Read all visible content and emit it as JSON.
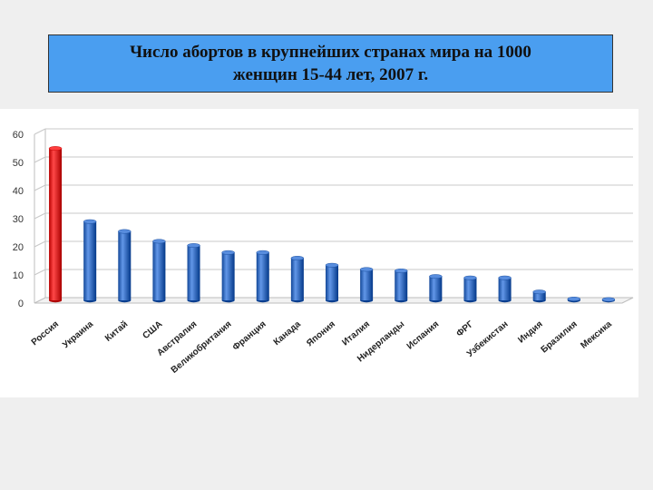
{
  "title": {
    "line1": "Число абортов в крупнейших странах мира на 1000",
    "line2": "женщин 15-44 лет, 2007 г."
  },
  "colors": {
    "highlight_bar": "#e02020",
    "default_bar": "#3a6fc0",
    "title_background": "#4a9ef0"
  },
  "chart_data": {
    "type": "bar",
    "categories": [
      "Россия",
      "Украина",
      "Китай",
      "США",
      "Австралия",
      "Великобритания",
      "Франция",
      "Канада",
      "Япония",
      "Италия",
      "Нидерланды",
      "Испания",
      "ФРГ",
      "Узбекистан",
      "Индия",
      "Бразилия",
      "Мексика"
    ],
    "values": [
      54,
      28,
      24.5,
      21,
      19.5,
      17,
      17,
      15,
      12.5,
      11,
      10.5,
      8.5,
      8,
      8,
      3,
      0.5,
      0.3
    ],
    "highlight_index": 0,
    "ylim": [
      0,
      60
    ],
    "yticks": [
      0,
      10,
      20,
      30,
      40,
      50,
      60
    ],
    "grid": true,
    "legend": "none",
    "xlabel": "",
    "ylabel": ""
  }
}
